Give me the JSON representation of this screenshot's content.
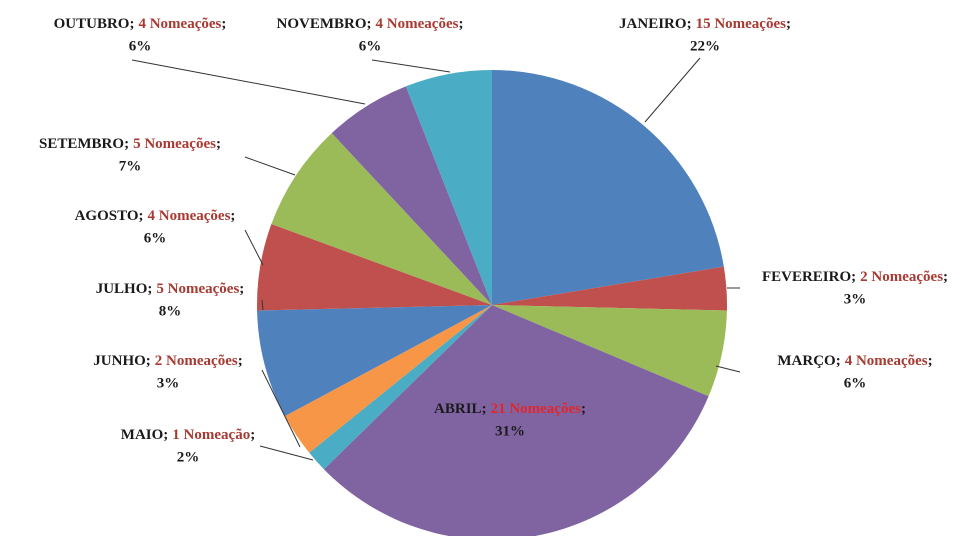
{
  "chart_data": {
    "type": "pie",
    "categories": [
      "JANEIRO",
      "FEVEREIRO",
      "MARÇO",
      "ABRIL",
      "MAIO",
      "JUNHO",
      "JULHO",
      "AGOSTO",
      "SETEMBRO",
      "OUTUBRO",
      "NOVEMBRO"
    ],
    "values": [
      15,
      2,
      4,
      21,
      1,
      2,
      5,
      4,
      5,
      4,
      4
    ],
    "value_labels": [
      "15 Nomeações",
      "2 Nomeações",
      "4 Nomeações",
      "21 Nomeações",
      "1 Nomeação",
      "2 Nomeações",
      "5 Nomeações",
      "4 Nomeações",
      "5 Nomeações",
      "4 Nomeações",
      "4 Nomeações"
    ],
    "percent_labels": [
      "22%",
      "3%",
      "6%",
      "31%",
      "2%",
      "3%",
      "8%",
      "6%",
      "7%",
      "6%",
      "6%"
    ],
    "separator": ";",
    "colors": [
      "#4f81bd",
      "#c0504d",
      "#9bbb59",
      "#8064a2",
      "#4bacc6",
      "#f79646",
      "#4f81bd",
      "#c0504d",
      "#9bbb59",
      "#8064a2",
      "#4bacc6"
    ]
  }
}
